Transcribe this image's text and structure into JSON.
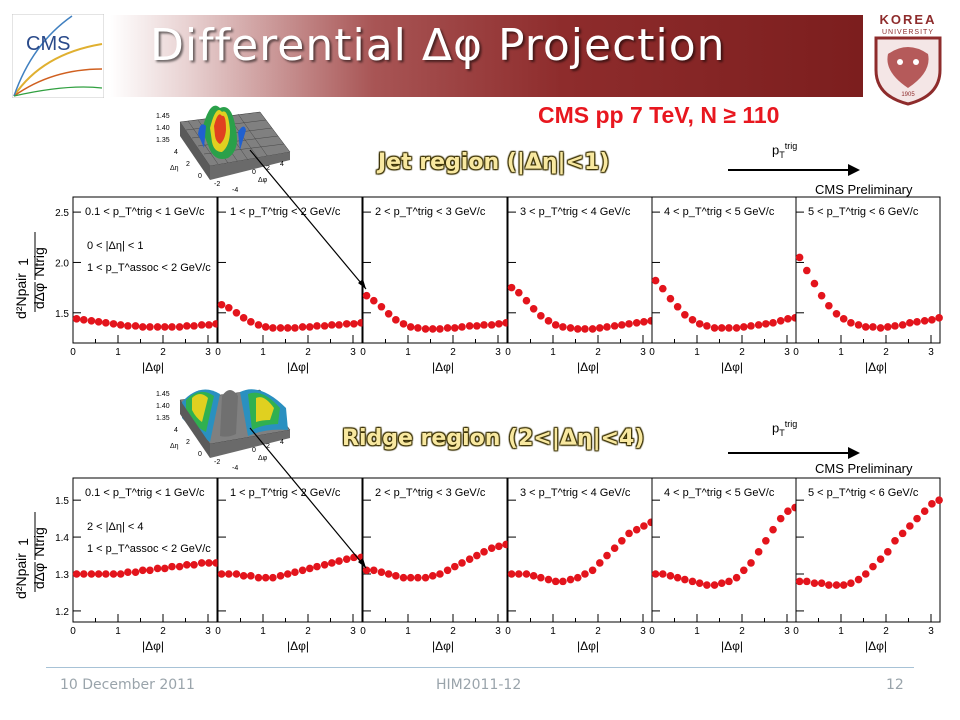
{
  "slide": {
    "title": "Differential Δφ Projection",
    "subtitle": "CMS pp 7 TeV, N ≥ 110",
    "footer": {
      "date": "10 December 2011",
      "conference": "HIM2011-12",
      "page": "12"
    },
    "logo_left": "CMS",
    "logo_right": {
      "name": "KOREA",
      "sub": "UNIVERSITY",
      "year": "1905"
    },
    "pt_trig_main": "p",
    "pt_trig_sub": "T",
    "pt_trig_sup": "trig",
    "prelim": "CMS Preliminary",
    "inset": {
      "ztick_top": "1.45",
      "ztick_mid": "1.40",
      "ztick_bot": "1.35",
      "eta_ticks": [
        "4",
        "2",
        "0",
        "-2",
        "-4"
      ],
      "phi_ticks": [
        "0",
        "2",
        "4"
      ],
      "eta_label": "Δη",
      "phi_label": "Δφ"
    }
  },
  "chart_data": [
    {
      "type": "scatter",
      "title": "Jet region (|Δη|<1)",
      "xlabel": "|Δφ|",
      "ylabel": "1/N_trig d²N^pair/dΔφ",
      "xlim": [
        0,
        3.2
      ],
      "ylim": [
        1.2,
        2.65
      ],
      "yticks": [
        "1.5",
        "2.0",
        "2.5"
      ],
      "xticks": [
        "0",
        "1",
        "2",
        "3"
      ],
      "annotation_lines": [
        "0 < |Δη| < 1",
        "1 < p_T^assoc < 2 GeV/c"
      ],
      "x": [
        0.08,
        0.24,
        0.41,
        0.57,
        0.73,
        0.9,
        1.06,
        1.22,
        1.39,
        1.55,
        1.71,
        1.88,
        2.04,
        2.2,
        2.37,
        2.53,
        2.69,
        2.86,
        3.02,
        3.18
      ],
      "series": [
        {
          "name": "0.1 < p_T^trig < 1 GeV/c",
          "values": [
            1.44,
            1.43,
            1.42,
            1.41,
            1.4,
            1.39,
            1.38,
            1.37,
            1.37,
            1.36,
            1.36,
            1.36,
            1.36,
            1.36,
            1.36,
            1.37,
            1.37,
            1.38,
            1.38,
            1.39
          ]
        },
        {
          "name": "1 < p_T^trig < 2 GeV/c",
          "values": [
            1.58,
            1.55,
            1.5,
            1.45,
            1.41,
            1.38,
            1.36,
            1.35,
            1.35,
            1.35,
            1.35,
            1.36,
            1.36,
            1.37,
            1.37,
            1.38,
            1.38,
            1.39,
            1.39,
            1.4
          ]
        },
        {
          "name": "2 < p_T^trig < 3 GeV/c",
          "values": [
            1.67,
            1.62,
            1.56,
            1.49,
            1.43,
            1.39,
            1.36,
            1.35,
            1.34,
            1.34,
            1.34,
            1.35,
            1.35,
            1.36,
            1.37,
            1.37,
            1.38,
            1.38,
            1.39,
            1.4
          ]
        },
        {
          "name": "3 < p_T^trig < 4 GeV/c",
          "values": [
            1.75,
            1.7,
            1.62,
            1.54,
            1.47,
            1.42,
            1.38,
            1.36,
            1.35,
            1.34,
            1.34,
            1.34,
            1.35,
            1.36,
            1.37,
            1.38,
            1.39,
            1.4,
            1.41,
            1.42
          ]
        },
        {
          "name": "4 < p_T^trig < 5 GeV/c",
          "values": [
            1.82,
            1.74,
            1.64,
            1.56,
            1.48,
            1.43,
            1.39,
            1.37,
            1.35,
            1.35,
            1.35,
            1.35,
            1.36,
            1.37,
            1.38,
            1.39,
            1.4,
            1.42,
            1.44,
            1.45
          ]
        },
        {
          "name": "5 < p_T^trig < 6 GeV/c",
          "values": [
            2.05,
            1.92,
            1.79,
            1.67,
            1.57,
            1.49,
            1.44,
            1.4,
            1.38,
            1.36,
            1.36,
            1.35,
            1.36,
            1.37,
            1.38,
            1.4,
            1.41,
            1.42,
            1.43,
            1.45
          ]
        }
      ]
    },
    {
      "type": "scatter",
      "title": "Ridge region (2<|Δη|<4)",
      "xlabel": "|Δφ|",
      "ylabel": "1/N_trig d²N^pair/dΔφ",
      "xlim": [
        0,
        3.2
      ],
      "ylim": [
        1.17,
        1.56
      ],
      "yticks": [
        "1.2",
        "1.3",
        "1.4",
        "1.5"
      ],
      "xticks": [
        "0",
        "1",
        "2",
        "3"
      ],
      "annotation_lines": [
        "2 < |Δη| < 4",
        "1 < p_T^assoc < 2 GeV/c"
      ],
      "x": [
        0.08,
        0.24,
        0.41,
        0.57,
        0.73,
        0.9,
        1.06,
        1.22,
        1.39,
        1.55,
        1.71,
        1.88,
        2.04,
        2.2,
        2.37,
        2.53,
        2.69,
        2.86,
        3.02,
        3.18
      ],
      "series": [
        {
          "name": "0.1 < p_T^trig < 1 GeV/c",
          "values": [
            1.3,
            1.3,
            1.3,
            1.3,
            1.3,
            1.3,
            1.3,
            1.305,
            1.305,
            1.31,
            1.31,
            1.315,
            1.315,
            1.32,
            1.32,
            1.325,
            1.325,
            1.33,
            1.33,
            1.33
          ]
        },
        {
          "name": "1 < p_T^trig < 2 GeV/c",
          "values": [
            1.3,
            1.3,
            1.3,
            1.295,
            1.295,
            1.29,
            1.29,
            1.29,
            1.295,
            1.3,
            1.305,
            1.31,
            1.315,
            1.32,
            1.325,
            1.33,
            1.335,
            1.34,
            1.345,
            1.345
          ]
        },
        {
          "name": "2 < p_T^trig < 3 GeV/c",
          "values": [
            1.31,
            1.31,
            1.305,
            1.3,
            1.295,
            1.29,
            1.29,
            1.29,
            1.29,
            1.295,
            1.3,
            1.31,
            1.32,
            1.33,
            1.34,
            1.35,
            1.36,
            1.37,
            1.375,
            1.38
          ]
        },
        {
          "name": "3 < p_T^trig < 4 GeV/c",
          "values": [
            1.3,
            1.3,
            1.3,
            1.295,
            1.29,
            1.285,
            1.28,
            1.28,
            1.285,
            1.29,
            1.3,
            1.31,
            1.33,
            1.35,
            1.37,
            1.39,
            1.41,
            1.42,
            1.43,
            1.44
          ]
        },
        {
          "name": "4 < p_T^trig < 5 GeV/c",
          "values": [
            1.3,
            1.3,
            1.295,
            1.29,
            1.285,
            1.28,
            1.275,
            1.27,
            1.27,
            1.275,
            1.28,
            1.29,
            1.31,
            1.33,
            1.36,
            1.39,
            1.42,
            1.45,
            1.47,
            1.48
          ]
        },
        {
          "name": "5 < p_T^trig < 6 GeV/c",
          "values": [
            1.28,
            1.28,
            1.275,
            1.275,
            1.27,
            1.27,
            1.27,
            1.275,
            1.285,
            1.3,
            1.32,
            1.34,
            1.36,
            1.39,
            1.41,
            1.43,
            1.45,
            1.47,
            1.49,
            1.5
          ]
        }
      ]
    }
  ]
}
